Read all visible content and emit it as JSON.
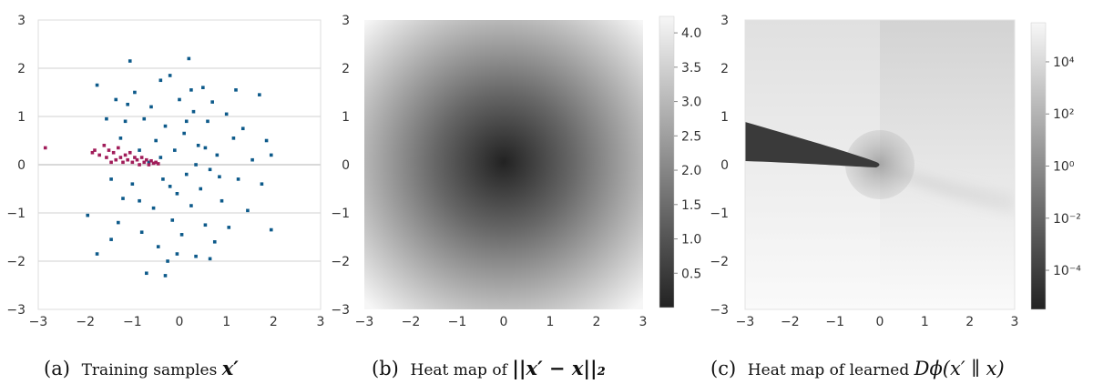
{
  "chart_data": [
    {
      "type": "scatter",
      "caption": {
        "label": "(a)",
        "text": "Training samples ",
        "math": "x′"
      },
      "xlim": [
        -3,
        3
      ],
      "ylim": [
        -3,
        3
      ],
      "xticks": [
        "−3",
        "−2",
        "−1",
        "0",
        "1",
        "2",
        "3"
      ],
      "yticks": [
        "−3",
        "−2",
        "−1",
        "0",
        "1",
        "2",
        "3"
      ],
      "grid": "horizontal",
      "series": [
        {
          "color": "#0d5a8a",
          "points": [
            [
              -1.95,
              -1.05
            ],
            [
              -1.75,
              -1.85
            ],
            [
              -1.75,
              1.65
            ],
            [
              -1.45,
              -1.55
            ],
            [
              -1.35,
              1.35
            ],
            [
              -1.3,
              -1.2
            ],
            [
              -1.2,
              -0.7
            ],
            [
              -1.25,
              0.55
            ],
            [
              -1.15,
              0.9
            ],
            [
              -1.05,
              2.15
            ],
            [
              -1.0,
              -0.4
            ],
            [
              -0.95,
              1.5
            ],
            [
              -0.85,
              0.3
            ],
            [
              -0.8,
              -1.4
            ],
            [
              -0.75,
              0.95
            ],
            [
              -0.7,
              -2.25
            ],
            [
              -0.6,
              1.2
            ],
            [
              -0.55,
              -0.9
            ],
            [
              -0.5,
              0.5
            ],
            [
              -0.45,
              -1.7
            ],
            [
              -0.4,
              1.75
            ],
            [
              -0.35,
              -0.3
            ],
            [
              -0.3,
              0.8
            ],
            [
              -0.25,
              -2.0
            ],
            [
              -0.2,
              1.85
            ],
            [
              -0.15,
              -1.15
            ],
            [
              -0.1,
              0.3
            ],
            [
              -0.05,
              -0.6
            ],
            [
              0.0,
              1.35
            ],
            [
              0.05,
              -1.45
            ],
            [
              0.1,
              0.65
            ],
            [
              0.15,
              -0.2
            ],
            [
              0.2,
              2.2
            ],
            [
              0.25,
              -0.85
            ],
            [
              0.3,
              1.1
            ],
            [
              0.35,
              -1.9
            ],
            [
              0.4,
              0.4
            ],
            [
              0.45,
              -0.5
            ],
            [
              0.5,
              1.6
            ],
            [
              0.55,
              -1.25
            ],
            [
              0.6,
              0.9
            ],
            [
              0.65,
              -0.1
            ],
            [
              0.7,
              1.3
            ],
            [
              0.75,
              -1.6
            ],
            [
              0.8,
              0.2
            ],
            [
              0.9,
              -0.75
            ],
            [
              1.0,
              1.05
            ],
            [
              1.05,
              -1.3
            ],
            [
              1.15,
              0.55
            ],
            [
              1.25,
              -0.3
            ],
            [
              1.35,
              0.75
            ],
            [
              1.45,
              -0.95
            ],
            [
              1.55,
              0.1
            ],
            [
              1.7,
              1.45
            ],
            [
              1.75,
              -0.4
            ],
            [
              1.85,
              0.5
            ],
            [
              1.95,
              0.2
            ],
            [
              1.95,
              -1.35
            ],
            [
              -1.55,
              0.95
            ],
            [
              -1.45,
              -0.3
            ],
            [
              -0.65,
              0.05
            ],
            [
              -0.4,
              0.15
            ],
            [
              0.35,
              0.0
            ],
            [
              0.55,
              0.35
            ],
            [
              -0.2,
              -0.45
            ],
            [
              0.15,
              0.9
            ],
            [
              -0.85,
              -0.75
            ],
            [
              0.85,
              -0.25
            ],
            [
              1.2,
              1.55
            ],
            [
              -1.1,
              1.25
            ],
            [
              -0.05,
              -1.85
            ],
            [
              0.65,
              -1.95
            ],
            [
              -0.3,
              -2.3
            ],
            [
              0.25,
              1.55
            ]
          ]
        },
        {
          "color": "#a11d5a",
          "points": [
            [
              -2.85,
              0.35
            ],
            [
              -1.85,
              0.25
            ],
            [
              -1.8,
              0.3
            ],
            [
              -1.7,
              0.2
            ],
            [
              -1.6,
              0.4
            ],
            [
              -1.55,
              0.15
            ],
            [
              -1.5,
              0.3
            ],
            [
              -1.45,
              0.05
            ],
            [
              -1.4,
              0.25
            ],
            [
              -1.35,
              0.1
            ],
            [
              -1.3,
              0.35
            ],
            [
              -1.25,
              0.15
            ],
            [
              -1.2,
              0.05
            ],
            [
              -1.15,
              0.2
            ],
            [
              -1.1,
              0.1
            ],
            [
              -1.05,
              0.25
            ],
            [
              -1.0,
              0.05
            ],
            [
              -0.95,
              0.15
            ],
            [
              -0.9,
              0.1
            ],
            [
              -0.85,
              0.0
            ],
            [
              -0.8,
              0.15
            ],
            [
              -0.75,
              0.05
            ],
            [
              -0.7,
              0.1
            ],
            [
              -0.65,
              0.0
            ],
            [
              -0.6,
              0.08
            ],
            [
              -0.55,
              0.03
            ],
            [
              -0.5,
              0.05
            ],
            [
              -0.45,
              0.02
            ]
          ]
        }
      ]
    },
    {
      "type": "heatmap",
      "caption": {
        "label": "(b)",
        "text": "Heat map of ",
        "math": "||x′ − x||₂"
      },
      "function": "euclidean_distance_to_origin",
      "xlim": [
        -3,
        3
      ],
      "ylim": [
        -3,
        3
      ],
      "xticks": [
        "−3",
        "−2",
        "−1",
        "0",
        "1",
        "2",
        "3"
      ],
      "yticks": [
        "−3",
        "−2",
        "−1",
        "0",
        "1",
        "2",
        "3"
      ],
      "colormap": "gray",
      "colorbar": {
        "range": [
          0,
          4.24
        ],
        "ticks": [
          {
            "v": 0.5,
            "label": "0.5"
          },
          {
            "v": 1.0,
            "label": "1.0"
          },
          {
            "v": 1.5,
            "label": "1.5"
          },
          {
            "v": 2.0,
            "label": "2.0"
          },
          {
            "v": 2.5,
            "label": "2.5"
          },
          {
            "v": 3.0,
            "label": "3.0"
          },
          {
            "v": 3.5,
            "label": "3.5"
          },
          {
            "v": 4.0,
            "label": "4.0"
          }
        ]
      }
    },
    {
      "type": "heatmap",
      "caption": {
        "label": "(c)",
        "text": "Heat map of learned ",
        "math": "Dϕ(x′ ∥ x)"
      },
      "function": "learned_divergence",
      "xlim": [
        -3,
        3
      ],
      "ylim": [
        -3,
        3
      ],
      "xticks": [
        "−3",
        "−2",
        "−1",
        "0",
        "1",
        "2",
        "3"
      ],
      "yticks": [
        "−3",
        "−2",
        "−1",
        "0",
        "1",
        "2",
        "3"
      ],
      "colormap": "gray",
      "colorbar": {
        "scale": "log",
        "range_exp": [
          -5.5,
          5.5
        ],
        "ticks": [
          {
            "e": 4,
            "label": "10⁴"
          },
          {
            "e": 2,
            "label": "10²"
          },
          {
            "e": 0,
            "label": "10⁰"
          },
          {
            "e": -2,
            "label": "10⁻²"
          },
          {
            "e": -4,
            "label": "10⁻⁴"
          }
        ]
      }
    }
  ]
}
